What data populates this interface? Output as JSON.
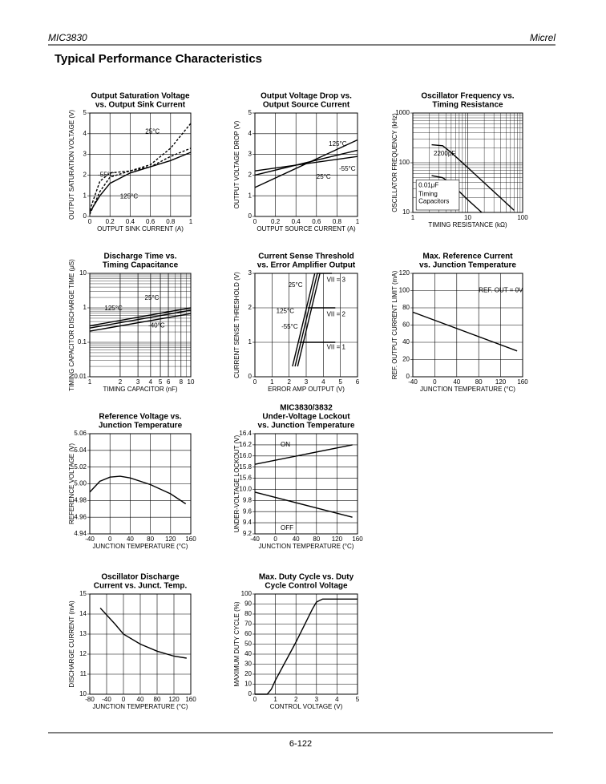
{
  "header": {
    "left": "MIC3830",
    "right": "Micrel"
  },
  "title": "Typical Performance Characteristics",
  "charts": [
    {
      "type": "line",
      "title": [
        "Output Saturation Voltage",
        "vs. Output Sink Current"
      ],
      "ylabel": "OUTPUT SATURATION VOLTAGE (V)",
      "xlabel": "OUTPUT SINK CURRENT (A)",
      "xlim": [
        0,
        1
      ],
      "xticks": [
        0,
        0.2,
        0.4,
        0.6,
        0.8,
        1
      ],
      "ylim": [
        0,
        5
      ],
      "yticks": [
        0,
        1,
        2,
        3,
        4,
        5
      ],
      "grid": true,
      "series": [
        {
          "name": "25°C",
          "color": "#000",
          "dash": true,
          "x": [
            0,
            0.1,
            0.2,
            0.4,
            0.6,
            0.8,
            1
          ],
          "values": [
            0.1,
            1.2,
            1.9,
            2.2,
            2.5,
            3.3,
            4.5
          ]
        },
        {
          "name": "-55°C",
          "color": "#000",
          "dash": true,
          "x": [
            0,
            0.1,
            0.2,
            0.4,
            0.6,
            0.8,
            1
          ],
          "values": [
            0.3,
            1.7,
            2.1,
            2.2,
            2.4,
            2.9,
            3.3
          ]
        },
        {
          "name": "125°C",
          "color": "#000",
          "x": [
            0,
            0.1,
            0.2,
            0.4,
            0.6,
            0.8,
            1
          ],
          "values": [
            0.2,
            1.0,
            1.6,
            2.1,
            2.4,
            2.7,
            3.1
          ]
        }
      ]
    },
    {
      "type": "line",
      "title": [
        "Output Voltage Drop vs.",
        "Output Source Current"
      ],
      "ylabel": "OUTPUT VOLTAGE DROP (V)",
      "xlabel": "OUTPUT SOURCE CURRENT (A)",
      "xlim": [
        0,
        1
      ],
      "xticks": [
        0,
        0.2,
        0.4,
        0.6,
        0.8,
        1
      ],
      "ylim": [
        0,
        5
      ],
      "yticks": [
        0,
        1,
        2,
        3,
        4,
        5
      ],
      "grid": true,
      "series": [
        {
          "name": "125°C",
          "color": "#000",
          "x": [
            0,
            1
          ],
          "values": [
            1.4,
            3.7
          ]
        },
        {
          "name": "-55°C",
          "color": "#000",
          "x": [
            0,
            1
          ],
          "values": [
            2.2,
            2.9
          ]
        },
        {
          "name": "25°C",
          "color": "#000",
          "x": [
            0,
            1
          ],
          "values": [
            2.0,
            3.2
          ]
        }
      ]
    },
    {
      "type": "line",
      "title": [
        "Oscillator Frequency vs.",
        "Timing Resistance"
      ],
      "ylabel": "OSCILLATOR FREQUENCY (kHz)",
      "xlabel": "TIMING RESISTANCE (kΩ)",
      "xlim": [
        1,
        100
      ],
      "xticks": [
        1,
        10,
        100
      ],
      "ylim": [
        10,
        1000
      ],
      "yticks": [
        10,
        100,
        1000
      ],
      "xlog": true,
      "ylog": true,
      "grid": true,
      "note": [
        "Timing",
        "Capacitors"
      ],
      "series": [
        {
          "name": "2200pF",
          "color": "#000",
          "x": [
            2.2,
            3.5,
            5,
            10,
            70
          ],
          "values": [
            230,
            220,
            160,
            80,
            11
          ]
        },
        {
          "name": "0.01μF",
          "color": "#000",
          "x": [
            2.2,
            3.5,
            5,
            10,
            18
          ],
          "values": [
            55,
            50,
            38,
            18,
            10
          ]
        }
      ]
    },
    {
      "type": "line",
      "title": [
        "Discharge Time vs.",
        "Timing Capacitance"
      ],
      "ylabel": "TIMING CAPACITOR DISCHARGE TIME (μS)",
      "xlabel": "TIMING CAPACITOR (nF)",
      "xlim": [
        1,
        10
      ],
      "xticks": [
        1,
        2,
        3,
        4,
        5,
        6,
        8,
        10
      ],
      "ylim": [
        0.01,
        10
      ],
      "yticks": [
        0.01,
        0.1,
        1,
        10
      ],
      "xlog": true,
      "ylog": true,
      "grid": true,
      "series": [
        {
          "name": "25°C",
          "color": "#000",
          "x": [
            1,
            10
          ],
          "values": [
            0.3,
            1.0
          ]
        },
        {
          "name": "125°C",
          "color": "#000",
          "x": [
            1,
            10
          ],
          "values": [
            0.26,
            0.85
          ]
        },
        {
          "name": "-40°C",
          "color": "#000",
          "x": [
            1,
            10
          ],
          "values": [
            0.21,
            0.68
          ]
        }
      ]
    },
    {
      "type": "line",
      "title": [
        "Current Sense Threshold",
        "vs. Error Amplifier Output"
      ],
      "ylabel": "CURRENT SENSE THRESHOLD (V)",
      "xlabel": "ERROR AMP OUTPUT (V)",
      "xlim": [
        0,
        6
      ],
      "xticks": [
        0,
        1,
        2,
        3,
        4,
        5,
        6
      ],
      "ylim": [
        0,
        3
      ],
      "yticks": [
        0,
        1,
        2,
        3
      ],
      "grid": true,
      "series": [
        {
          "name": "25°C",
          "color": "#000",
          "x": [
            2.35,
            3.65
          ],
          "values": [
            0.3,
            3
          ]
        },
        {
          "name": "125°C",
          "color": "#000",
          "x": [
            2.2,
            3.5
          ],
          "values": [
            0.3,
            3
          ]
        },
        {
          "name": "-55°C",
          "color": "#000",
          "x": [
            2.5,
            3.8
          ],
          "values": [
            0.3,
            3
          ]
        },
        {
          "name": "VII = 3",
          "color": "#000",
          "x": [
            3.6,
            4.5
          ],
          "values": [
            3,
            3
          ]
        },
        {
          "name": "VII = 2",
          "color": "#000",
          "x": [
            3.1,
            4.7
          ],
          "values": [
            2,
            2
          ]
        },
        {
          "name": "VII = 1",
          "color": "#000",
          "x": [
            2.6,
            4.7
          ],
          "values": [
            1,
            1
          ]
        }
      ]
    },
    {
      "type": "line",
      "title": [
        "Max. Reference Current",
        "vs. Junction Temperature"
      ],
      "ylabel": "REF. OUTPUT CURRENT LIMIT (mA)",
      "xlabel": "JUNCTION TEMPERATURE (°C)",
      "xlim": [
        -40,
        160
      ],
      "xticks": [
        -40,
        0,
        40,
        80,
        120,
        160
      ],
      "ylim": [
        0,
        120
      ],
      "yticks": [
        0,
        20,
        40,
        60,
        80,
        100,
        120
      ],
      "grid": true,
      "series": [
        {
          "name": "REF. OUT = 0V",
          "color": "#000",
          "x": [
            -40,
            150
          ],
          "values": [
            75,
            30
          ]
        }
      ]
    },
    {
      "type": "line",
      "title": [
        "Reference Voltage vs.",
        "Junction Temperature"
      ],
      "ylabel": "REFERENCE VOLTAGE (V)",
      "xlabel": "JUNCTION TEMPERATURE (°C)",
      "xlim": [
        -40,
        160
      ],
      "xticks": [
        -40,
        0,
        40,
        80,
        120,
        160
      ],
      "ylim": [
        4.94,
        5.06
      ],
      "yticks": [
        4.94,
        4.96,
        4.98,
        {
          "value": 5,
          "label": "5.00"
        },
        5.02,
        5.04,
        5.06
      ],
      "grid": true,
      "series": [
        {
          "color": "#000",
          "x": [
            -40,
            -20,
            0,
            20,
            40,
            80,
            120,
            150
          ],
          "values": [
            4.99,
            5.003,
            5.008,
            5.009,
            5.007,
            4.999,
            4.988,
            4.976
          ]
        }
      ]
    },
    {
      "type": "line",
      "title": [
        "MIC3830/3832",
        "Under-Voltage Lockout",
        "vs. Junction Temperature"
      ],
      "ylabel": "UNDER-VOLTAGE LOCKOUT (V)",
      "xlabel": "JUNCTION TEMPERATURE (°C)",
      "xlim": [
        -40,
        160
      ],
      "xticks": [
        -40,
        0,
        40,
        80,
        120,
        160
      ],
      "ylim": [
        9.2,
        16.4
      ],
      "ybreak": [
        10,
        15.6
      ],
      "yticks": [
        9.2,
        9.4,
        9.6,
        9.8,
        {
          "value": 10,
          "label": "10.0"
        },
        15.6,
        15.8,
        {
          "value": 16,
          "label": "16.0"
        },
        16.2,
        16.4
      ],
      "grid": true,
      "series": [
        {
          "name": "ON",
          "color": "#000",
          "x": [
            -40,
            150
          ],
          "values": [
            15.85,
            16.2
          ]
        },
        {
          "name": "OFF",
          "color": "#000",
          "x": [
            -40,
            150
          ],
          "values": [
            9.95,
            9.5
          ]
        }
      ]
    },
    {
      "type": "line",
      "title": [
        "Oscillator Discharge",
        "Current vs. Junct. Temp."
      ],
      "ylabel": "DISCHARGE CURRENT (mA)",
      "xlabel": "JUNCTION TEMPERATURE (°C)",
      "xlim": [
        -80,
        160
      ],
      "xticks": [
        -80,
        -40,
        0,
        40,
        80,
        120,
        160
      ],
      "ylim": [
        10,
        15
      ],
      "yticks": [
        10,
        11,
        12,
        13,
        14,
        15
      ],
      "grid": true,
      "series": [
        {
          "color": "#000",
          "x": [
            -55,
            -20,
            0,
            40,
            80,
            120,
            150
          ],
          "values": [
            14.3,
            13.5,
            13.0,
            12.5,
            12.15,
            11.9,
            11.8
          ]
        }
      ]
    },
    {
      "type": "line",
      "title": [
        "Max. Duty Cycle vs. Duty",
        "Cycle Control Voltage"
      ],
      "ylabel": "MAXIMUM DUTY CYCLE (%)",
      "xlabel": "CONTROL VOLTAGE (V)",
      "xlim": [
        0,
        5
      ],
      "xticks": [
        0,
        1,
        2,
        3,
        4,
        5
      ],
      "ylim": [
        0,
        100
      ],
      "yticks": [
        0,
        10,
        20,
        30,
        40,
        50,
        60,
        70,
        80,
        90,
        100
      ],
      "grid": true,
      "series": [
        {
          "color": "#000",
          "x": [
            0,
            0.6,
            0.8,
            1,
            2,
            2.8,
            3,
            3.3,
            5
          ],
          "values": [
            0,
            0,
            5,
            14,
            52,
            85,
            92,
            95,
            95
          ]
        }
      ]
    }
  ],
  "footer": {
    "page": "6-122"
  }
}
